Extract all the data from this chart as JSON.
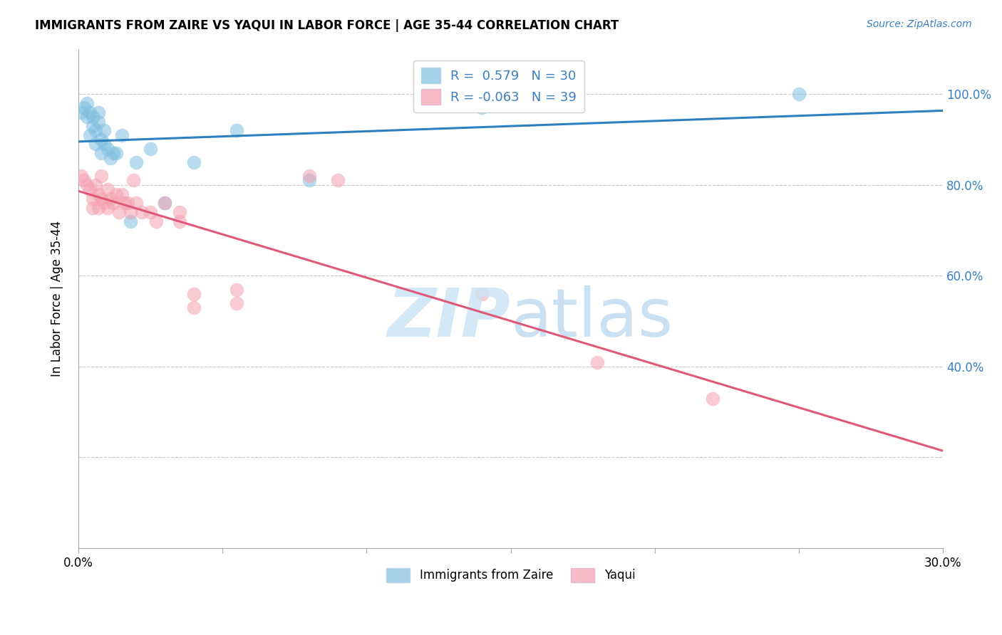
{
  "title": "IMMIGRANTS FROM ZAIRE VS YAQUI IN LABOR FORCE | AGE 35-44 CORRELATION CHART",
  "source": "Source: ZipAtlas.com",
  "ylabel_label": "In Labor Force | Age 35-44",
  "xmin": 0.0,
  "xmax": 0.3,
  "ymin": 0.0,
  "ymax": 1.1,
  "x_ticks": [
    0.0,
    0.05,
    0.1,
    0.15,
    0.2,
    0.25,
    0.3
  ],
  "y_ticks": [
    0.0,
    0.2,
    0.4,
    0.6,
    0.8,
    1.0
  ],
  "right_y_labels": [
    "",
    "",
    "40.0%",
    "60.0%",
    "80.0%",
    "100.0%"
  ],
  "zaire_R": 0.579,
  "zaire_N": 30,
  "yaqui_R": -0.063,
  "yaqui_N": 39,
  "zaire_color": "#7fbfdf",
  "yaqui_color": "#f4a0b0",
  "zaire_line_color": "#2e7fbf",
  "yaqui_line_color": "#e05878",
  "zaire_x": [
    0.001,
    0.002,
    0.003,
    0.003,
    0.004,
    0.004,
    0.005,
    0.005,
    0.006,
    0.006,
    0.007,
    0.007,
    0.008,
    0.008,
    0.009,
    0.009,
    0.01,
    0.011,
    0.012,
    0.013,
    0.015,
    0.018,
    0.02,
    0.025,
    0.03,
    0.04,
    0.055,
    0.08,
    0.14,
    0.25
  ],
  "zaire_y": [
    0.96,
    0.97,
    0.95,
    0.98,
    0.96,
    0.91,
    0.93,
    0.95,
    0.92,
    0.89,
    0.96,
    0.94,
    0.9,
    0.87,
    0.92,
    0.89,
    0.88,
    0.86,
    0.87,
    0.87,
    0.91,
    0.72,
    0.85,
    0.88,
    0.76,
    0.85,
    0.92,
    0.81,
    0.97,
    1.0
  ],
  "yaqui_x": [
    0.001,
    0.002,
    0.003,
    0.004,
    0.005,
    0.005,
    0.006,
    0.007,
    0.007,
    0.008,
    0.008,
    0.009,
    0.01,
    0.01,
    0.011,
    0.012,
    0.013,
    0.014,
    0.015,
    0.016,
    0.017,
    0.018,
    0.019,
    0.02,
    0.022,
    0.025,
    0.027,
    0.03,
    0.035,
    0.035,
    0.04,
    0.04,
    0.055,
    0.055,
    0.08,
    0.09,
    0.14,
    0.18,
    0.22
  ],
  "yaqui_y": [
    0.82,
    0.81,
    0.8,
    0.79,
    0.77,
    0.75,
    0.8,
    0.78,
    0.75,
    0.82,
    0.77,
    0.76,
    0.79,
    0.75,
    0.77,
    0.76,
    0.78,
    0.74,
    0.78,
    0.76,
    0.76,
    0.74,
    0.81,
    0.76,
    0.74,
    0.74,
    0.72,
    0.76,
    0.74,
    0.72,
    0.56,
    0.53,
    0.57,
    0.54,
    0.82,
    0.81,
    0.56,
    0.41,
    0.33
  ]
}
